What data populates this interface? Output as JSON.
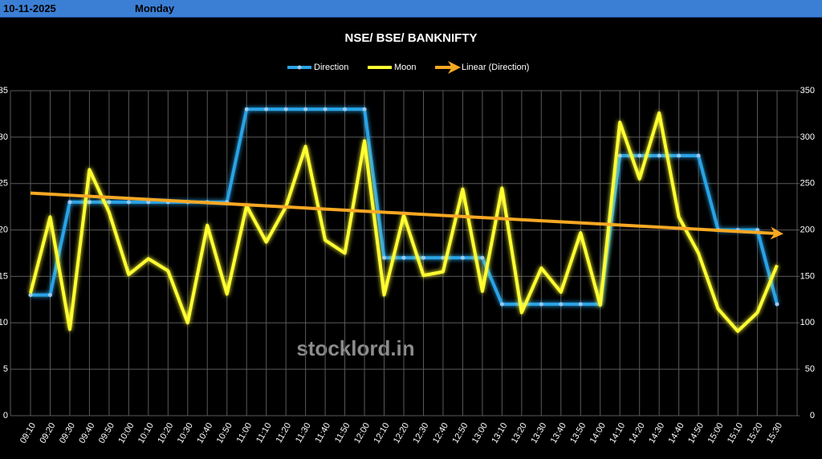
{
  "header": {
    "date": "10-11-2025",
    "day": "Monday"
  },
  "chart_data": {
    "type": "line",
    "title": "NSE/ BSE/ BANKNIFTY",
    "watermark": "stocklord.in",
    "categories": [
      "09:10",
      "09:20",
      "09:30",
      "09:40",
      "09:50",
      "10:00",
      "10:10",
      "10:20",
      "10:30",
      "10:40",
      "10:50",
      "11:00",
      "11:10",
      "11:20",
      "11:30",
      "11:40",
      "11:50",
      "12:00",
      "12:10",
      "12:20",
      "12:30",
      "12:40",
      "12:50",
      "13:00",
      "13:10",
      "13:20",
      "13:30",
      "13:40",
      "13:50",
      "14:00",
      "14:10",
      "14:20",
      "14:30",
      "14:40",
      "14:50",
      "15:00",
      "15:10",
      "15:20",
      "15:30"
    ],
    "series": [
      {
        "name": "Direction",
        "color": "#2aa3e6",
        "markers": true,
        "values": [
          13,
          13,
          23,
          23,
          23,
          23,
          23,
          23,
          23,
          23,
          23,
          33,
          33,
          33,
          33,
          33,
          33,
          33,
          17,
          17,
          17,
          17,
          17,
          17,
          12,
          12,
          12,
          12,
          12,
          12,
          28,
          28,
          28,
          28,
          28,
          20,
          20,
          20,
          12
        ]
      },
      {
        "name": "Moon",
        "color": "#ffff33",
        "axis": "y2",
        "values": [
          132,
          214,
          93,
          265,
          219,
          152,
          169,
          156,
          100,
          205,
          131,
          226,
          187,
          225,
          290,
          189,
          175,
          296,
          130,
          216,
          151,
          155,
          244,
          134,
          245,
          111,
          159,
          133,
          197,
          119,
          316,
          255,
          326,
          214,
          175,
          115,
          91,
          111,
          162
        ]
      }
    ],
    "trendline": {
      "name": "Linear (Direction)",
      "series": 0,
      "color": "#f7a823"
    },
    "ylim": [
      0,
      35
    ],
    "yticks": [
      0,
      5,
      10,
      15,
      20,
      25,
      30,
      35
    ],
    "y2lim": [
      0,
      350
    ],
    "y2ticks": [
      0,
      50,
      100,
      150,
      200,
      250,
      300,
      350
    ],
    "grid": true,
    "legend": "top"
  }
}
